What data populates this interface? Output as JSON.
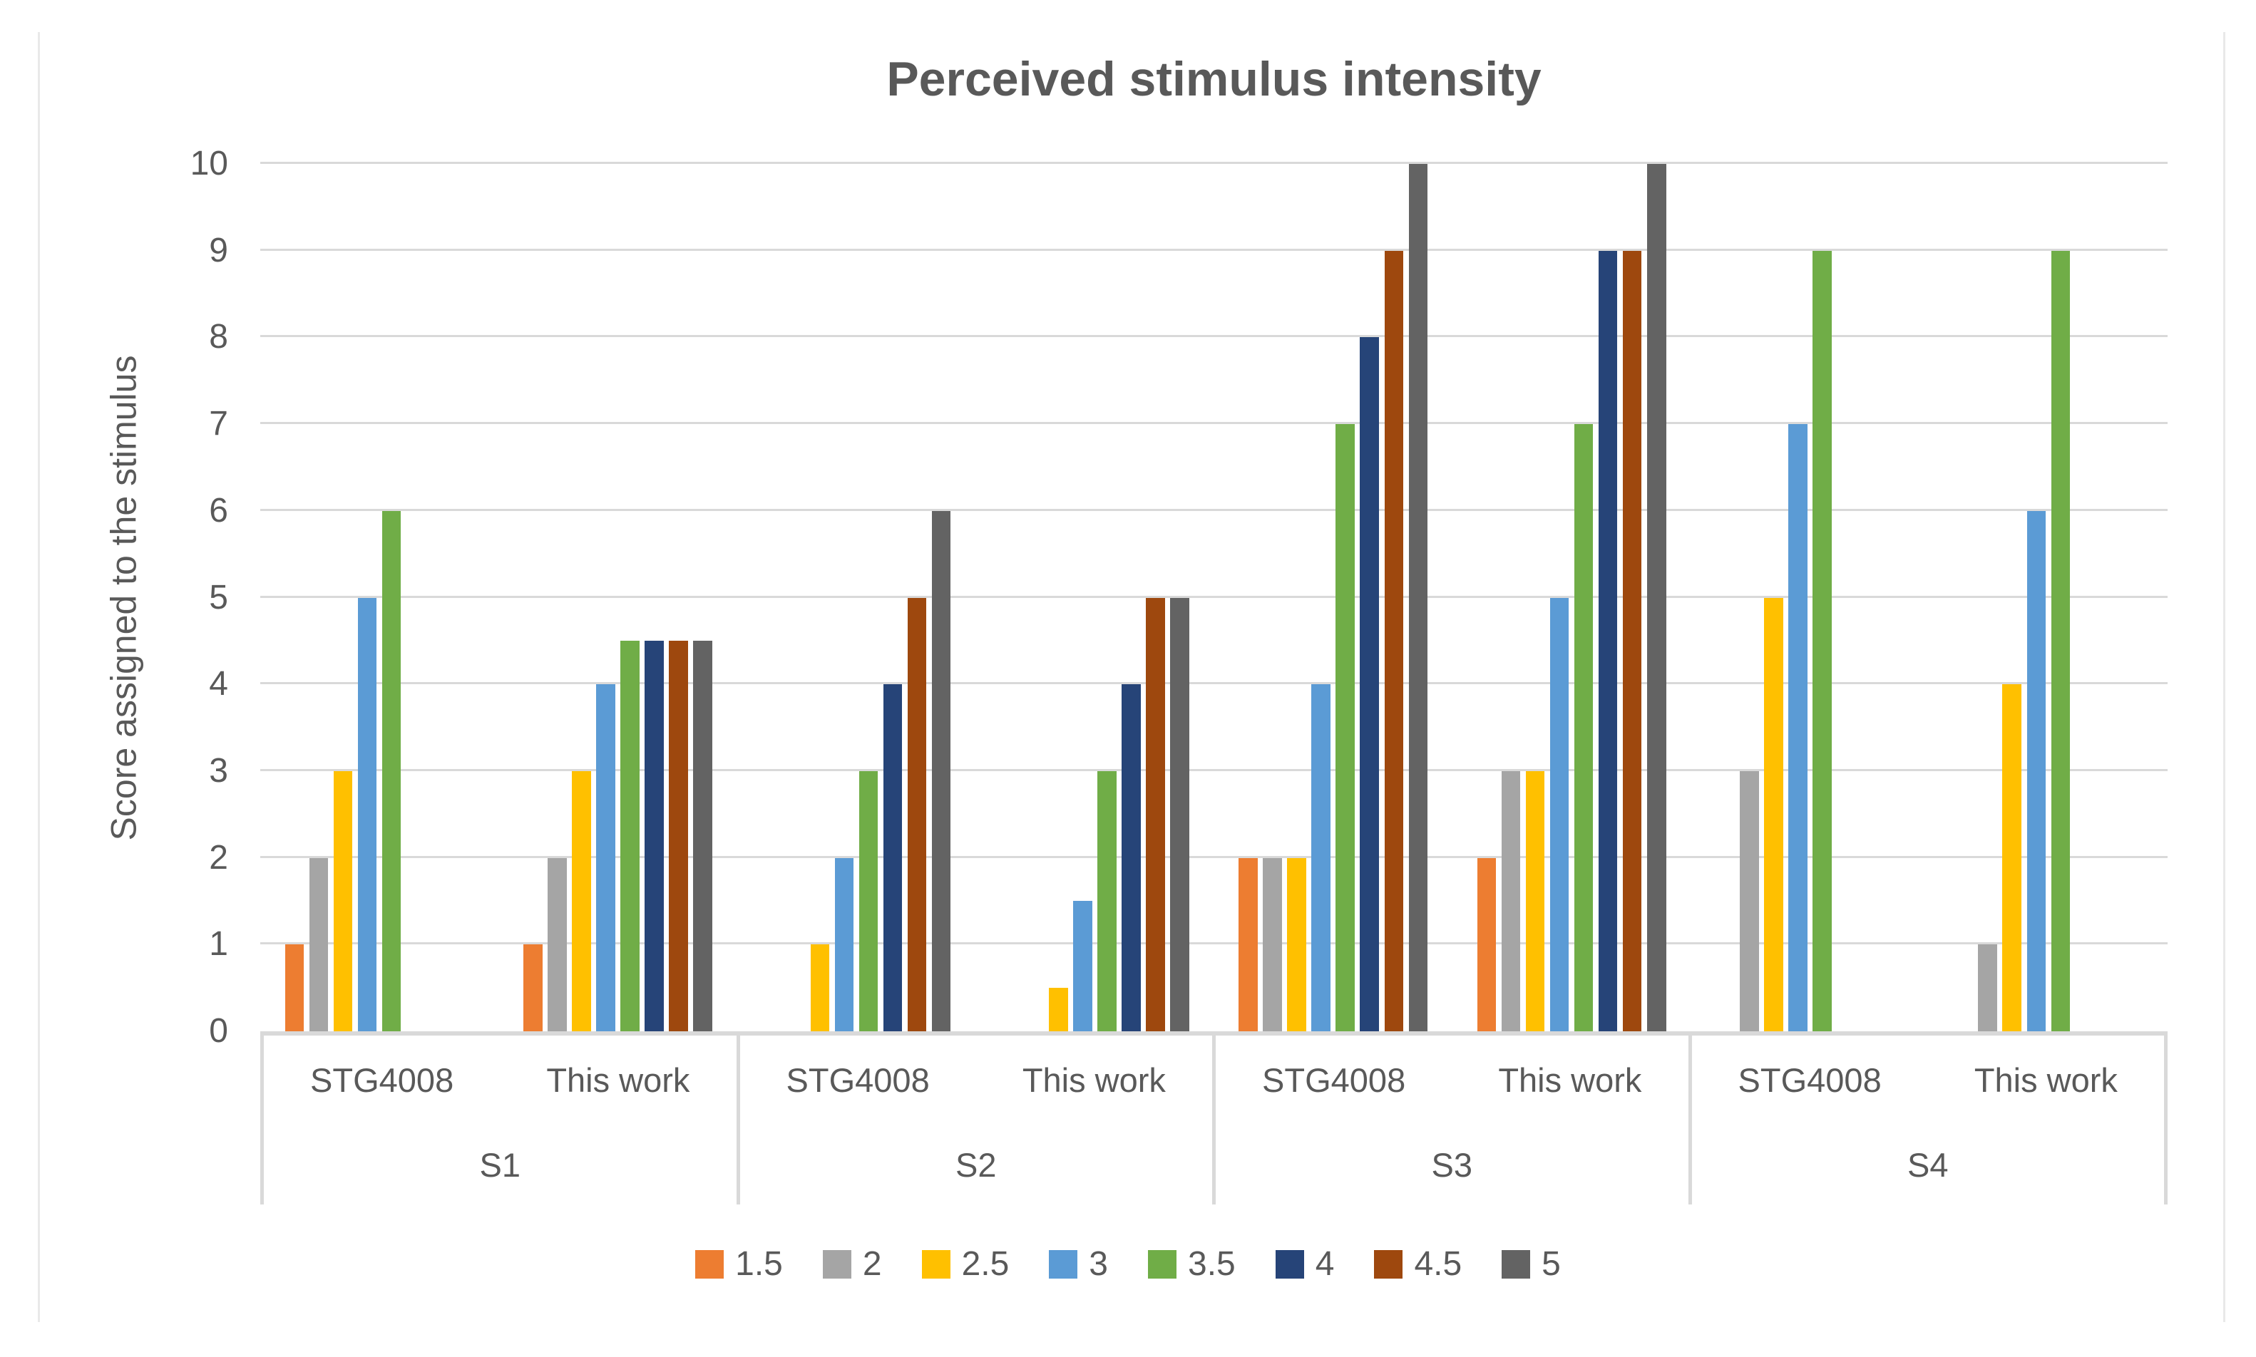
{
  "chart_data": {
    "type": "bar",
    "title": "Perceived stimulus intensity",
    "xlabel": "",
    "ylabel": "Score assigned to the stimulus",
    "ylim": [
      0,
      10
    ],
    "y_ticks": [
      0,
      1,
      2,
      3,
      4,
      5,
      6,
      7,
      8,
      9,
      10
    ],
    "grid": true,
    "legend_position": "bottom",
    "series": [
      {
        "name": "1.5",
        "color": "#ED7D31"
      },
      {
        "name": "2",
        "color": "#A5A5A5"
      },
      {
        "name": "2.5",
        "color": "#FFC000"
      },
      {
        "name": "3",
        "color": "#5B9BD5"
      },
      {
        "name": "3.5",
        "color": "#70AD47"
      },
      {
        "name": "4",
        "color": "#264478"
      },
      {
        "name": "4.5",
        "color": "#9E480E"
      },
      {
        "name": "5",
        "color": "#636363"
      }
    ],
    "groups": [
      {
        "label": "S1",
        "clusters": [
          {
            "label": "STG4008",
            "values": [
              1,
              2,
              3,
              5,
              6,
              0,
              0,
              0
            ]
          },
          {
            "label": "This work",
            "values": [
              1,
              2,
              3,
              4,
              4.5,
              4.5,
              4.5,
              4.5
            ]
          }
        ]
      },
      {
        "label": "S2",
        "clusters": [
          {
            "label": "STG4008",
            "values": [
              0,
              0,
              1,
              2,
              3,
              4,
              5,
              6
            ]
          },
          {
            "label": "This work",
            "values": [
              0,
              0,
              0.5,
              1.5,
              3,
              4,
              5,
              5
            ]
          }
        ]
      },
      {
        "label": "S3",
        "clusters": [
          {
            "label": "STG4008",
            "values": [
              2,
              2,
              2,
              4,
              7,
              8,
              9,
              10
            ]
          },
          {
            "label": "This work",
            "values": [
              2,
              3,
              3,
              5,
              7,
              9,
              9,
              10
            ]
          }
        ]
      },
      {
        "label": "S4",
        "clusters": [
          {
            "label": "STG4008",
            "values": [
              0,
              3,
              5,
              7,
              9,
              0,
              0,
              0
            ]
          },
          {
            "label": "This work",
            "values": [
              0,
              1,
              4,
              6,
              9,
              0,
              0,
              0
            ]
          }
        ]
      }
    ],
    "colors": {
      "gridline": "#D9D9D9",
      "axis_border": "#D9D9D9",
      "text": "#595959"
    }
  }
}
